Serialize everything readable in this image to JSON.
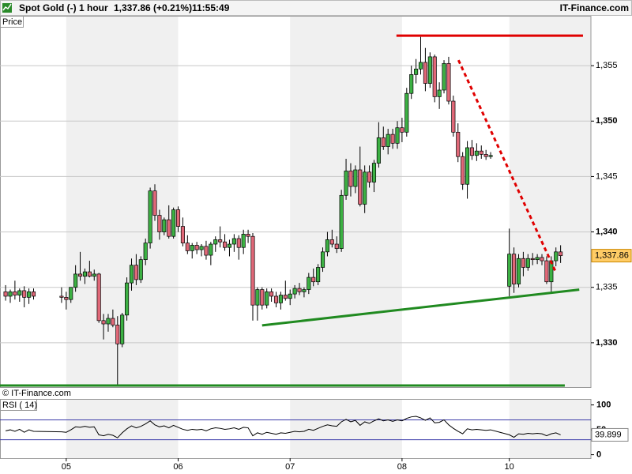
{
  "header": {
    "symbol": "Spot Gold (-)",
    "interval": "1 hour",
    "quote": "1,337.86 (+0.21%)",
    "time": "11:55:49",
    "brand": "IT-Finance.com"
  },
  "chart_data": [
    {
      "type": "candlestick",
      "label": "Price",
      "watermark": "© IT-Finance.com",
      "up_color": "#3cb043",
      "down_color": "#e06878",
      "grid": true,
      "xlim": [
        -14.2,
        112.5
      ],
      "ylim": [
        1326,
        1359.5
      ],
      "xticks": [
        {
          "value": 0,
          "label": "05"
        },
        {
          "value": 24,
          "label": "06"
        },
        {
          "value": 48,
          "label": "07"
        },
        {
          "value": 72,
          "label": "08"
        },
        {
          "value": 95,
          "label": "10"
        }
      ],
      "yticks": [
        {
          "value": 1330,
          "label": "1,330"
        },
        {
          "value": 1335,
          "label": "1,335"
        },
        {
          "value": 1340,
          "label": "1,340"
        },
        {
          "value": 1345,
          "label": "1,345"
        },
        {
          "value": 1350,
          "label": "1,350"
        },
        {
          "value": 1355,
          "label": "1,355"
        }
      ],
      "last_price": {
        "value": 1337.86,
        "label": "1,337.86"
      },
      "x": [
        -13,
        -12,
        -11,
        -10,
        -9,
        -8,
        -7,
        -1,
        0,
        1,
        2,
        3,
        4,
        5,
        6,
        7,
        8,
        9,
        10,
        11,
        12,
        13,
        14,
        15,
        16,
        17,
        18,
        19,
        20,
        21,
        22,
        23,
        24,
        25,
        26,
        27,
        28,
        29,
        30,
        31,
        32,
        33,
        34,
        35,
        36,
        37,
        38,
        39,
        40,
        41,
        42,
        43,
        44,
        45,
        46,
        47,
        48,
        49,
        50,
        51,
        52,
        53,
        54,
        55,
        56,
        57,
        58,
        59,
        60,
        61,
        62,
        63,
        64,
        65,
        66,
        67,
        68,
        69,
        70,
        71,
        72,
        73,
        74,
        75,
        76,
        77,
        78,
        79,
        80,
        81,
        82,
        83,
        84,
        85,
        86,
        87,
        88,
        89,
        90,
        91,
        95,
        96,
        97,
        98,
        99,
        100,
        101,
        102,
        103,
        104,
        105,
        106
      ],
      "open": [
        1334.6,
        1334.2,
        1334.6,
        1334.3,
        1334.7,
        1334.1,
        1334.6,
        1334.2,
        1334.1,
        1333.9,
        1335.0,
        1336.2,
        1336.0,
        1336.4,
        1336.0,
        1336.2,
        1332.0,
        1331.7,
        1332.2,
        1331.6,
        1329.9,
        1332.5,
        1335.4,
        1337.0,
        1335.7,
        1337.5,
        1339.0,
        1343.7,
        1341.5,
        1340.0,
        1341.1,
        1339.6,
        1342.0,
        1340.5,
        1339.0,
        1338.3,
        1338.8,
        1338.4,
        1338.7,
        1337.9,
        1338.9,
        1339.3,
        1339.1,
        1338.6,
        1338.9,
        1339.4,
        1338.6,
        1339.8,
        1339.6,
        1333.4,
        1334.8,
        1333.4,
        1334.6,
        1334.2,
        1333.6,
        1334.3,
        1334.0,
        1334.4,
        1334.9,
        1334.6,
        1334.8,
        1335.9,
        1335.5,
        1336.8,
        1338.2,
        1339.3,
        1338.9,
        1338.5,
        1343.3,
        1345.5,
        1344.1,
        1345.6,
        1342.5,
        1345.4,
        1344.5,
        1346.2,
        1348.5,
        1347.7,
        1348.8,
        1348.0,
        1349.4,
        1349.0,
        1352.5,
        1354.2,
        1354.7,
        1355.3,
        1353.4,
        1355.8,
        1352.2,
        1352.8,
        1355.2,
        1351.8,
        1349.0,
        1346.8,
        1344.3,
        1347.6,
        1346.9,
        1347.3,
        1347.0,
        1346.8,
        1335.1,
        1338.0,
        1335.3,
        1337.6,
        1336.8,
        1337.6,
        1337.5,
        1337.7,
        1337.4,
        1335.5,
        1337.4,
        1338.2
      ],
      "high": [
        1335.2,
        1334.8,
        1335.6,
        1334.9,
        1335.1,
        1334.9,
        1334.9,
        1335.0,
        1334.6,
        1335.0,
        1337.0,
        1338.2,
        1336.7,
        1337.4,
        1336.6,
        1336.3,
        1332.6,
        1332.6,
        1333.0,
        1332.4,
        1332.7,
        1335.9,
        1337.6,
        1338.0,
        1337.8,
        1339.4,
        1344.0,
        1344.3,
        1342.0,
        1341.3,
        1342.4,
        1342.2,
        1342.3,
        1341.3,
        1339.7,
        1339.0,
        1339.1,
        1338.9,
        1339.2,
        1339.1,
        1339.6,
        1340.5,
        1339.8,
        1339.3,
        1339.8,
        1339.7,
        1340.2,
        1340.2,
        1339.9,
        1335.0,
        1335.0,
        1334.9,
        1334.9,
        1334.6,
        1334.6,
        1335.6,
        1334.8,
        1335.2,
        1335.4,
        1335.0,
        1336.3,
        1336.7,
        1337.1,
        1338.6,
        1340.0,
        1340.2,
        1339.6,
        1343.8,
        1346.6,
        1346.2,
        1346.0,
        1347.7,
        1346.0,
        1346.0,
        1346.5,
        1349.9,
        1349.5,
        1349.3,
        1349.3,
        1350.0,
        1350.3,
        1353.0,
        1355.0,
        1355.6,
        1357.6,
        1356.6,
        1356.2,
        1356.0,
        1353.5,
        1355.5,
        1355.8,
        1352.3,
        1349.8,
        1347.2,
        1348.2,
        1348.3,
        1348.0,
        1347.8,
        1347.4,
        1347.2,
        1340.3,
        1338.6,
        1338.0,
        1338.2,
        1338.0,
        1338.1,
        1338.0,
        1338.0,
        1337.8,
        1337.8,
        1338.6,
        1338.8
      ],
      "low": [
        1333.8,
        1333.6,
        1333.9,
        1333.7,
        1333.2,
        1333.5,
        1333.9,
        1333.6,
        1333.0,
        1333.6,
        1334.6,
        1335.6,
        1335.3,
        1335.9,
        1335.6,
        1331.8,
        1330.3,
        1331.0,
        1331.4,
        1326.1,
        1329.6,
        1332.0,
        1334.7,
        1335.2,
        1335.4,
        1337.0,
        1338.5,
        1341.0,
        1339.3,
        1339.7,
        1339.4,
        1339.4,
        1340.0,
        1338.7,
        1338.0,
        1337.6,
        1338.0,
        1337.8,
        1337.5,
        1337.0,
        1338.2,
        1338.6,
        1338.3,
        1337.8,
        1338.2,
        1337.5,
        1338.0,
        1339.0,
        1332.0,
        1332.0,
        1333.0,
        1333.1,
        1333.7,
        1333.2,
        1333.0,
        1333.8,
        1333.4,
        1334.0,
        1334.3,
        1334.1,
        1334.4,
        1335.1,
        1335.2,
        1336.4,
        1337.8,
        1338.6,
        1338.1,
        1338.2,
        1342.9,
        1343.2,
        1343.5,
        1342.3,
        1341.7,
        1344.0,
        1343.6,
        1345.8,
        1347.4,
        1347.0,
        1347.5,
        1347.5,
        1348.1,
        1348.6,
        1352.0,
        1353.4,
        1354.2,
        1352.7,
        1353.0,
        1351.7,
        1351.1,
        1352.5,
        1351.5,
        1348.6,
        1346.3,
        1343.8,
        1343.0,
        1346.5,
        1346.4,
        1346.6,
        1346.5,
        1346.6,
        1334.2,
        1334.5,
        1335.0,
        1336.0,
        1336.5,
        1337.0,
        1337.1,
        1337.0,
        1335.3,
        1334.5,
        1336.9,
        1337.2
      ],
      "close": [
        1334.2,
        1334.6,
        1334.3,
        1334.7,
        1334.1,
        1334.6,
        1334.2,
        1334.1,
        1333.9,
        1335.0,
        1336.2,
        1336.0,
        1336.4,
        1336.0,
        1336.2,
        1332.0,
        1331.7,
        1332.2,
        1331.6,
        1329.9,
        1332.5,
        1335.4,
        1337.0,
        1335.7,
        1337.5,
        1339.0,
        1343.7,
        1341.5,
        1340.0,
        1341.1,
        1339.6,
        1342.0,
        1340.5,
        1339.0,
        1338.3,
        1338.8,
        1338.4,
        1338.7,
        1337.9,
        1338.9,
        1339.3,
        1339.1,
        1338.6,
        1338.9,
        1339.4,
        1338.6,
        1339.8,
        1339.6,
        1333.4,
        1334.8,
        1333.4,
        1334.6,
        1334.2,
        1333.6,
        1334.3,
        1334.0,
        1334.4,
        1334.9,
        1334.6,
        1334.8,
        1335.9,
        1335.5,
        1336.8,
        1338.2,
        1339.3,
        1338.9,
        1338.5,
        1343.3,
        1345.5,
        1344.1,
        1345.6,
        1342.5,
        1345.4,
        1344.5,
        1346.2,
        1348.5,
        1347.7,
        1348.8,
        1348.0,
        1349.4,
        1349.0,
        1352.5,
        1354.2,
        1354.7,
        1355.3,
        1353.4,
        1355.8,
        1352.2,
        1352.8,
        1355.2,
        1351.8,
        1349.0,
        1346.8,
        1344.3,
        1347.6,
        1346.9,
        1347.3,
        1347.0,
        1346.8,
        1346.9,
        1338.0,
        1335.3,
        1337.6,
        1336.8,
        1337.6,
        1337.5,
        1337.7,
        1337.4,
        1335.5,
        1337.4,
        1338.2,
        1337.86
      ],
      "trendlines": [
        {
          "color": "#e00000",
          "dashed": false,
          "x": [
            70.8,
            110.8
          ],
          "y": [
            1357.71,
            1357.71
          ]
        },
        {
          "color": "#e00000",
          "dashed": true,
          "x": [
            84.1,
            104.9
          ],
          "y": [
            1355.5,
            1336.43
          ]
        },
        {
          "color": "#208a20",
          "dashed": false,
          "x": [
            42.0,
            110.0
          ],
          "y": [
            1331.57,
            1334.79
          ]
        },
        {
          "color": "#208a20",
          "dashed": false,
          "x": [
            -14.2,
            106.9
          ],
          "y": [
            1326.14,
            1326.14
          ]
        }
      ]
    },
    {
      "type": "line",
      "label": "RSI ( 14)",
      "color": "#000000",
      "level_color": "#3a3aa8",
      "ylim": [
        -7,
        112
      ],
      "yticks": [
        0,
        50,
        100
      ],
      "levels": [
        70,
        30
      ],
      "last_value": 39.899,
      "values": [
        48,
        50,
        47,
        51,
        45,
        50,
        47,
        46,
        45,
        50,
        56,
        55,
        57,
        55,
        56,
        40,
        38,
        41,
        39,
        34,
        44,
        52,
        58,
        54,
        57,
        62,
        68,
        60,
        56,
        58,
        54,
        59,
        55,
        51,
        49,
        51,
        50,
        51,
        48,
        52,
        54,
        53,
        51,
        52,
        54,
        51,
        55,
        54,
        38,
        44,
        41,
        45,
        43,
        41,
        44,
        43,
        45,
        47,
        46,
        47,
        51,
        49,
        53,
        57,
        60,
        58,
        57,
        66,
        71,
        66,
        69,
        59,
        66,
        63,
        68,
        72,
        68,
        70,
        67,
        70,
        68,
        73,
        76,
        77,
        74,
        69,
        74,
        64,
        65,
        70,
        60,
        53,
        47,
        42,
        52,
        50,
        51,
        50,
        49,
        50,
        40,
        35,
        42,
        41,
        43,
        42,
        43,
        42,
        38,
        42,
        44,
        39.899
      ]
    }
  ]
}
